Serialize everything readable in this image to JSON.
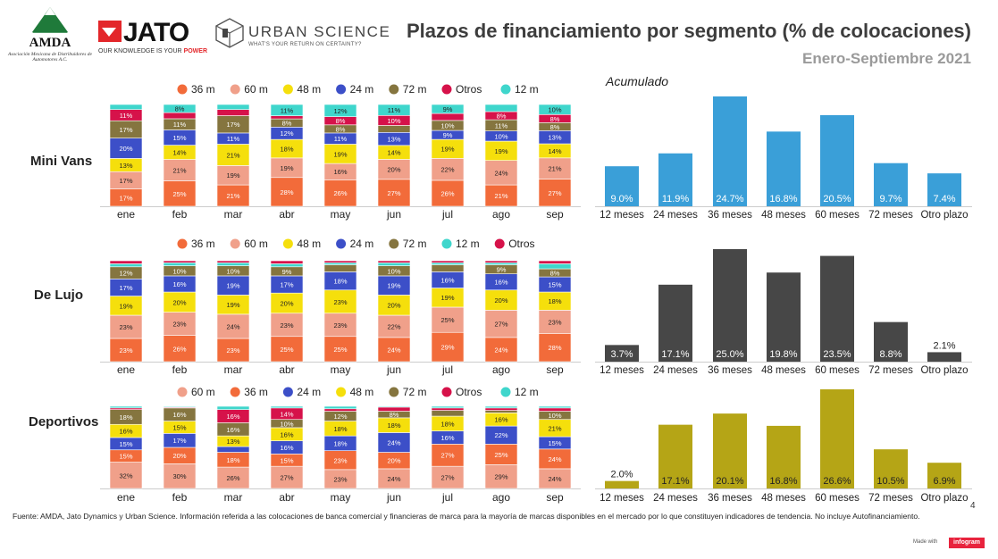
{
  "header": {
    "title": "Plazos de financiamiento por segmento (% de colocaciones)",
    "subtitle": "Enero-Septiembre  2021",
    "logos": {
      "amda_name": "AMDA",
      "amda_subtitle": "Asociación Mexicana de Distribuidores de Automotores A.C.",
      "jato_name": "JATO",
      "jato_tagline_prefix": "OUR KNOWLEDGE IS YOUR ",
      "jato_tagline_emphasis": "POWER",
      "urban_science_name": "URBAN SCIENCE",
      "urban_science_tagline": "WHAT'S YOUR RETURN ON CERTAINTY?"
    }
  },
  "accumulated_label": "Acumulado",
  "colors": {
    "36 m": "#f26b3a",
    "60 m": "#f0a08a",
    "48 m": "#f5df0c",
    "24 m": "#3c4fc8",
    "72 m": "#85753f",
    "Otros": "#d6124a",
    "12 m": "#3fd6cc",
    "acum_mini": "#3a9fd8",
    "acum_lujo": "#474747",
    "acum_dep": "#b5a516",
    "axis": "#cccccc",
    "label_dark": "#222222",
    "label_light": "#ffffff"
  },
  "footer": {
    "source": "Fuente: AMDA, Jato Dynamics y Urban Science. Información referida a las colocaciones de banca comercial y financieras de marca para la mayoría de marcas disponibles en el mercado por lo que constituyen indicadores de tendencia. No incluye Autofinanciamiento.",
    "page_number": "4",
    "made_with": "Made with",
    "brand": "infogram"
  },
  "chart_data": [
    {
      "type": "bar",
      "stacked": true,
      "segment": "Mini Vans",
      "legend": [
        "36 m",
        "60 m",
        "48 m",
        "24 m",
        "72 m",
        "Otros",
        "12 m"
      ],
      "categories": [
        "ene",
        "feb",
        "mar",
        "abr",
        "may",
        "jun",
        "jul",
        "ago",
        "sep"
      ],
      "ylim": [
        0,
        100
      ],
      "series": [
        {
          "name": "36 m",
          "values": [
            17,
            25,
            21,
            28,
            26,
            27,
            26,
            21,
            27
          ]
        },
        {
          "name": "60 m",
          "values": [
            17,
            21,
            19,
            19,
            16,
            20,
            22,
            24,
            21
          ]
        },
        {
          "name": "48 m",
          "values": [
            13,
            14,
            21,
            18,
            19,
            14,
            19,
            19,
            14
          ]
        },
        {
          "name": "24 m",
          "values": [
            20,
            15,
            11,
            12,
            11,
            13,
            9,
            10,
            13
          ]
        },
        {
          "name": "72 m",
          "values": [
            17,
            11,
            17,
            8,
            8,
            7,
            10,
            11,
            8
          ]
        },
        {
          "name": "Otros",
          "values": [
            11,
            6,
            6,
            3,
            8,
            10,
            7,
            8,
            8
          ]
        },
        {
          "name": "12 m",
          "values": [
            5,
            8,
            5,
            11,
            12,
            11,
            9,
            7,
            10
          ]
        }
      ]
    },
    {
      "type": "bar",
      "stacked": true,
      "segment": "De Lujo",
      "legend": [
        "36 m",
        "60 m",
        "48 m",
        "24 m",
        "72 m",
        "12 m",
        "Otros"
      ],
      "categories": [
        "ene",
        "feb",
        "mar",
        "abr",
        "may",
        "jun",
        "jul",
        "ago",
        "sep"
      ],
      "ylim": [
        0,
        100
      ],
      "series": [
        {
          "name": "36 m",
          "values": [
            23,
            26,
            23,
            25,
            25,
            24,
            29,
            24,
            28
          ]
        },
        {
          "name": "60 m",
          "values": [
            23,
            23,
            24,
            23,
            23,
            22,
            25,
            27,
            23
          ]
        },
        {
          "name": "48 m",
          "values": [
            19,
            20,
            19,
            20,
            23,
            20,
            19,
            20,
            18
          ]
        },
        {
          "name": "24 m",
          "values": [
            17,
            16,
            19,
            17,
            18,
            19,
            16,
            16,
            15
          ]
        },
        {
          "name": "72 m",
          "values": [
            12,
            10,
            10,
            9,
            7,
            10,
            7,
            9,
            8
          ]
        },
        {
          "name": "12 m",
          "values": [
            3,
            3,
            3,
            3,
            2,
            3,
            2,
            2,
            5
          ]
        },
        {
          "name": "Otros",
          "values": [
            3,
            2,
            2,
            3,
            2,
            2,
            2,
            2,
            3
          ]
        }
      ]
    },
    {
      "type": "bar",
      "stacked": true,
      "segment": "Deportivos",
      "legend": [
        "60 m",
        "36 m",
        "24 m",
        "48 m",
        "72 m",
        "Otros",
        "12 m"
      ],
      "categories": [
        "ene",
        "feb",
        "mar",
        "abr",
        "may",
        "jun",
        "jul",
        "ago",
        "sep"
      ],
      "ylim": [
        0,
        100
      ],
      "series": [
        {
          "name": "60 m",
          "values": [
            32,
            30,
            26,
            27,
            23,
            24,
            27,
            29,
            24
          ]
        },
        {
          "name": "36 m",
          "values": [
            15,
            20,
            18,
            15,
            23,
            20,
            27,
            25,
            24
          ]
        },
        {
          "name": "24 m",
          "values": [
            15,
            17,
            7,
            16,
            18,
            24,
            16,
            22,
            15
          ]
        },
        {
          "name": "48 m",
          "values": [
            16,
            15,
            13,
            16,
            18,
            18,
            18,
            16,
            21
          ]
        },
        {
          "name": "72 m",
          "values": [
            18,
            16,
            16,
            10,
            12,
            8,
            7,
            3,
            10
          ]
        },
        {
          "name": "Otros",
          "values": [
            2,
            1,
            16,
            14,
            3,
            5,
            3,
            3,
            4
          ]
        },
        {
          "name": "12 m",
          "values": [
            2,
            1,
            4,
            2,
            3,
            1,
            2,
            2,
            2
          ]
        }
      ]
    },
    {
      "type": "bar",
      "segment": "Mini Vans",
      "title": "Acumulado",
      "categories": [
        "12 meses",
        "24 meses",
        "36 meses",
        "48 meses",
        "60 meses",
        "72 meses",
        "Otro plazo"
      ],
      "values": [
        9.0,
        11.9,
        24.7,
        16.8,
        20.5,
        9.7,
        7.4
      ],
      "labels": [
        "9.0%",
        "11.9%",
        "24.7%",
        "16.8%",
        "20.5%",
        "9.7%",
        "7.4%"
      ],
      "ylim": [
        0,
        25
      ]
    },
    {
      "type": "bar",
      "segment": "De Lujo",
      "categories": [
        "12 meses",
        "24 meses",
        "36 meses",
        "48 meses",
        "60 meses",
        "72 meses",
        "Otro plazo"
      ],
      "values": [
        3.7,
        17.1,
        25.0,
        19.8,
        23.5,
        8.8,
        2.1
      ],
      "labels": [
        "3.7%",
        "17.1%",
        "25.0%",
        "19.8%",
        "23.5%",
        "8.8%",
        "2.1%"
      ],
      "ylim": [
        0,
        25
      ]
    },
    {
      "type": "bar",
      "segment": "Deportivos",
      "categories": [
        "12 meses",
        "24 meses",
        "36 meses",
        "48 meses",
        "60 meses",
        "72 meses",
        "Otro plazo"
      ],
      "values": [
        2.0,
        17.1,
        20.1,
        16.8,
        26.6,
        10.5,
        6.9
      ],
      "labels": [
        "2.0%",
        "17.1%",
        "20.1%",
        "16.8%",
        "26.6%",
        "10.5%",
        "6.9%"
      ],
      "ylim": [
        0,
        27
      ]
    }
  ]
}
